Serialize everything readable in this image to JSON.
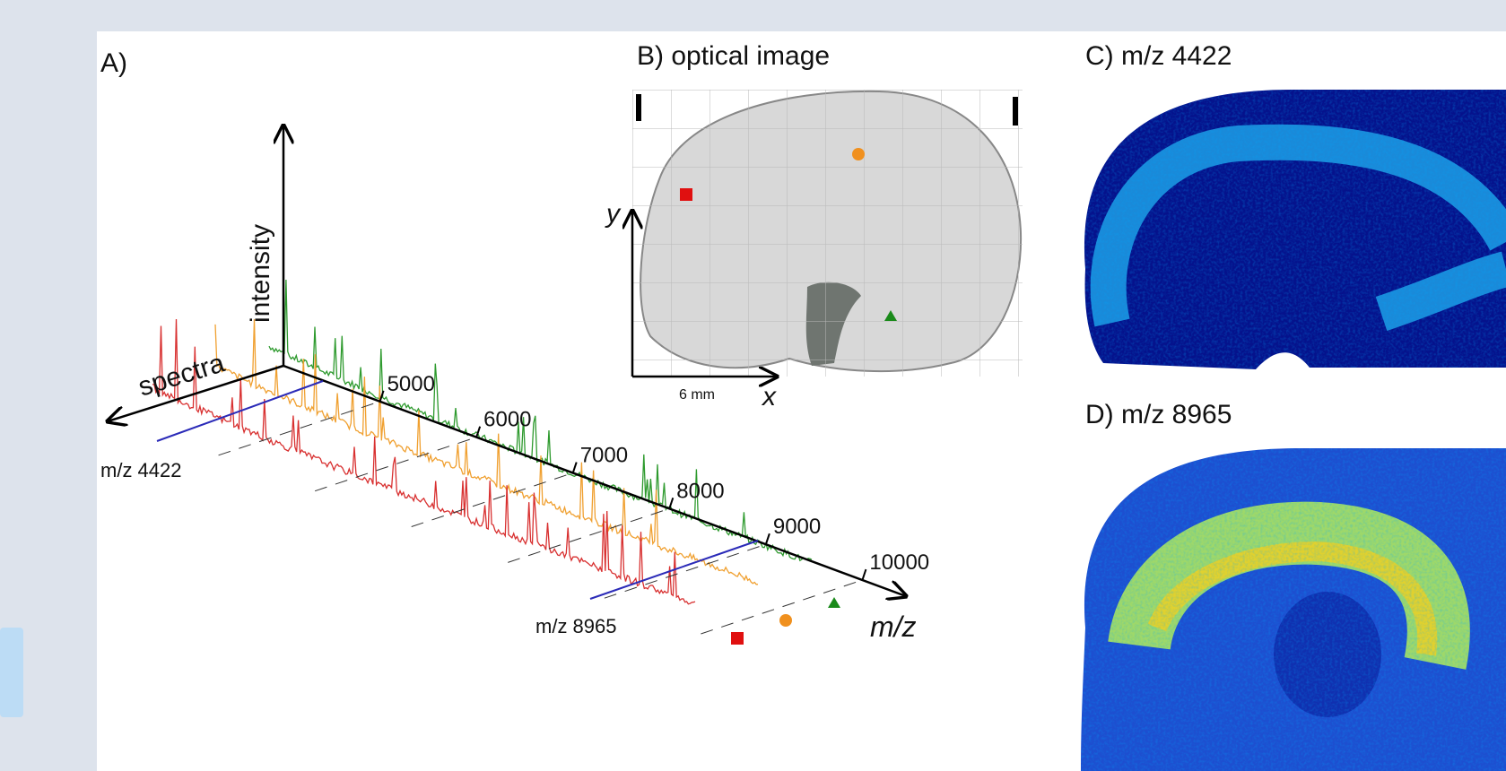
{
  "panels": {
    "a": {
      "label": "A)",
      "axis_intensity": "intensity",
      "axis_spectra": "spectra",
      "axis_mz": "m/z",
      "ticks": [
        5000,
        6000,
        7000,
        8000,
        9000,
        10000
      ],
      "marker_low": "m/z 4422",
      "marker_high": "m/z 8965"
    },
    "b": {
      "title": "B) optical image",
      "axis_y": "y",
      "axis_x": "x",
      "scale": "6 mm"
    },
    "c": {
      "title": "C) m/z 4422"
    },
    "d": {
      "title": "D) m/z 8965"
    }
  }
}
